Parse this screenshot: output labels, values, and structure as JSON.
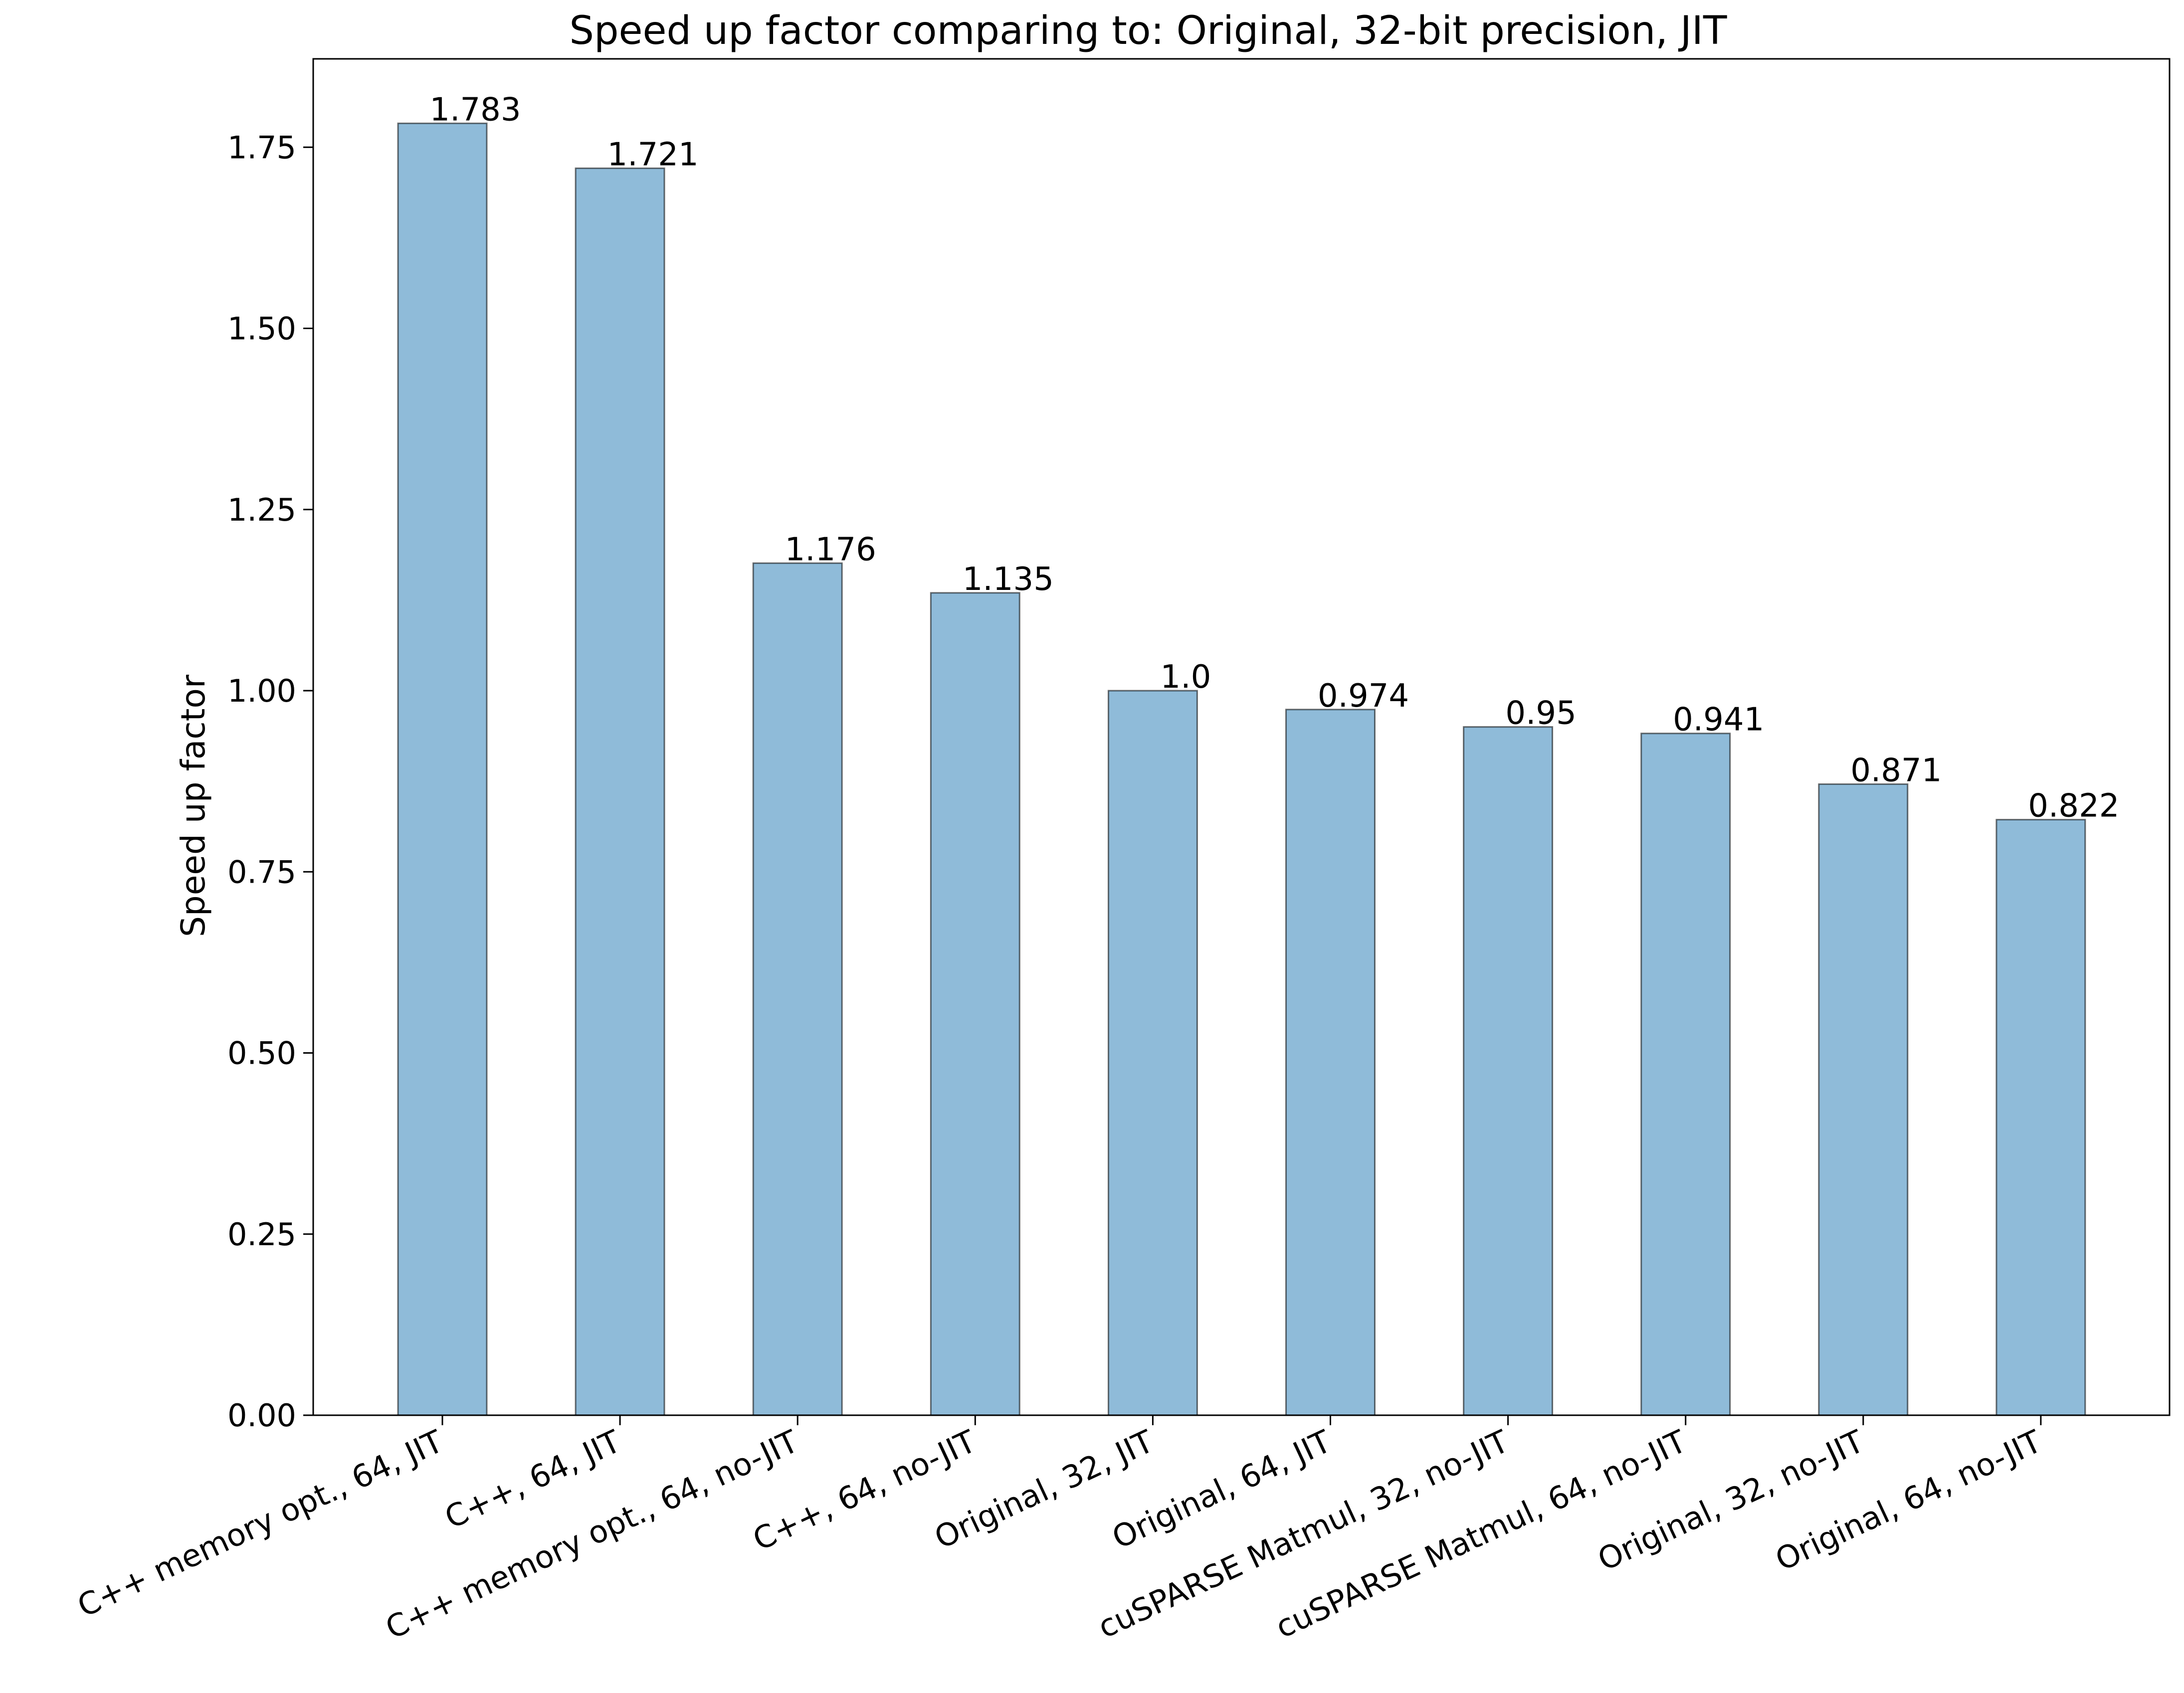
{
  "chart_data": {
    "type": "bar",
    "title": "Speed up factor comparing to: Original, 32-bit precision, JIT",
    "xlabel": "",
    "ylabel": "Speed up factor",
    "categories": [
      "C++ memory opt., 64, JIT",
      "C++, 64, JIT",
      "C++ memory opt., 64, no-JIT",
      "C++, 64, no-JIT",
      "Original, 32, JIT",
      "Original, 64, JIT",
      "cuSPARSE Matmul, 32, no-JIT",
      "cuSPARSE Matmul, 64, no-JIT",
      "Original, 32, no-JIT",
      "Original, 64, no-JIT"
    ],
    "values": [
      1.783,
      1.721,
      1.176,
      1.135,
      1.0,
      0.974,
      0.95,
      0.941,
      0.871,
      0.822
    ],
    "value_labels": [
      "1.783",
      "1.721",
      "1.176",
      "1.135",
      "1.0",
      "0.974",
      "0.95",
      "0.941",
      "0.871",
      "0.822"
    ],
    "ylim": [
      0,
      1.872
    ],
    "yticks": [
      0.0,
      0.25,
      0.5,
      0.75,
      1.0,
      1.25,
      1.5,
      1.75
    ],
    "ytick_labels": [
      "0.00",
      "0.25",
      "0.50",
      "0.75",
      "1.00",
      "1.25",
      "1.50",
      "1.75"
    ],
    "grid": false,
    "legend": "none",
    "colors": {
      "bar_fill": "#1f77b4",
      "bar_fill_opacity": 0.5,
      "bar_edge": "#000000"
    }
  }
}
